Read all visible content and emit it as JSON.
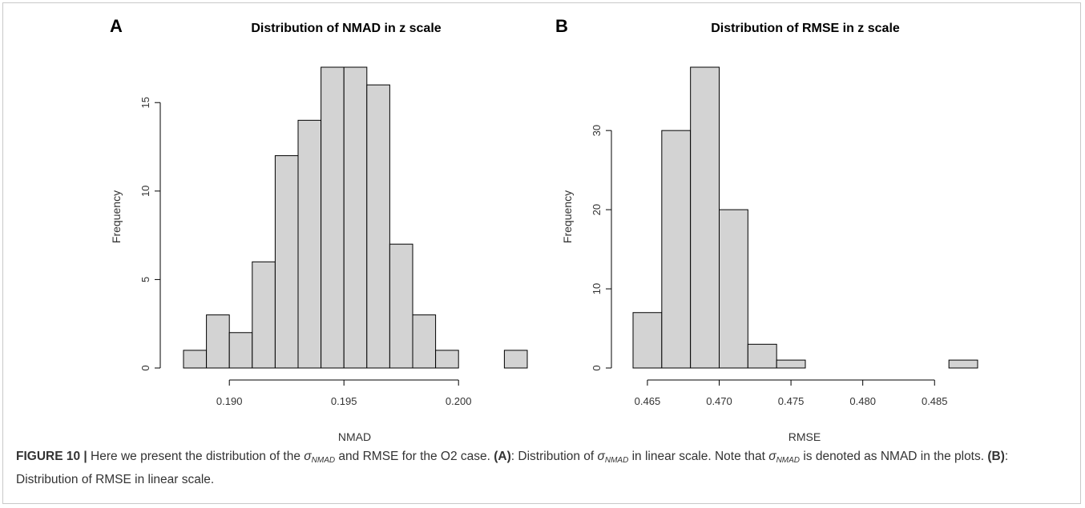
{
  "chart_data": [
    {
      "panel_label": "A",
      "type": "bar",
      "title": "Distribution of NMAD in z scale",
      "xlabel": "NMAD",
      "ylabel": "Frequency",
      "bin_edges": [
        0.188,
        0.189,
        0.19,
        0.191,
        0.192,
        0.193,
        0.194,
        0.195,
        0.196,
        0.197,
        0.198,
        0.199,
        0.2,
        0.201,
        0.202,
        0.203
      ],
      "values": [
        1,
        3,
        2,
        6,
        12,
        14,
        17,
        17,
        16,
        7,
        3,
        1,
        0,
        0,
        1
      ],
      "xlim": [
        0.188,
        0.203
      ],
      "ylim": [
        0,
        17
      ],
      "x_ticks": [
        0.19,
        0.195,
        0.2
      ],
      "x_tick_labels": [
        "0.190",
        "0.195",
        "0.200"
      ],
      "y_ticks": [
        0,
        5,
        10,
        15
      ],
      "y_tick_labels": [
        "0",
        "5",
        "10",
        "15"
      ],
      "bar_color": "#d3d3d3",
      "grid": false
    },
    {
      "panel_label": "B",
      "type": "bar",
      "title": "Distribution of RMSE in z scale",
      "xlabel": "RMSE",
      "ylabel": "Frequency",
      "bin_edges": [
        0.464,
        0.466,
        0.468,
        0.47,
        0.472,
        0.474,
        0.476,
        0.478,
        0.48,
        0.482,
        0.484,
        0.486,
        0.488
      ],
      "values": [
        7,
        30,
        38,
        20,
        3,
        1,
        0,
        0,
        0,
        0,
        0,
        1
      ],
      "xlim": [
        0.464,
        0.488
      ],
      "ylim": [
        0,
        38
      ],
      "x_ticks": [
        0.465,
        0.47,
        0.475,
        0.48,
        0.485
      ],
      "x_tick_labels": [
        "0.465",
        "0.470",
        "0.475",
        "0.480",
        "0.485"
      ],
      "y_ticks": [
        0,
        10,
        20,
        30
      ],
      "y_tick_labels": [
        "0",
        "10",
        "20",
        "30"
      ],
      "bar_color": "#d3d3d3",
      "grid": false
    }
  ],
  "caption": {
    "figure_label": "FIGURE 10 |",
    "text_1": " Here we present the distribution of the ",
    "sigma": "σ",
    "sub_nmad": "NMAD",
    "text_2": " and RMSE for the O2 case. ",
    "label_a": "(A)",
    "text_3": ": Distribution of ",
    "text_4": " in linear scale. Note that ",
    "text_5": " is denoted as NMAD in the plots. ",
    "label_b": "(B)",
    "text_6": ": Distribution of RMSE in linear scale."
  }
}
